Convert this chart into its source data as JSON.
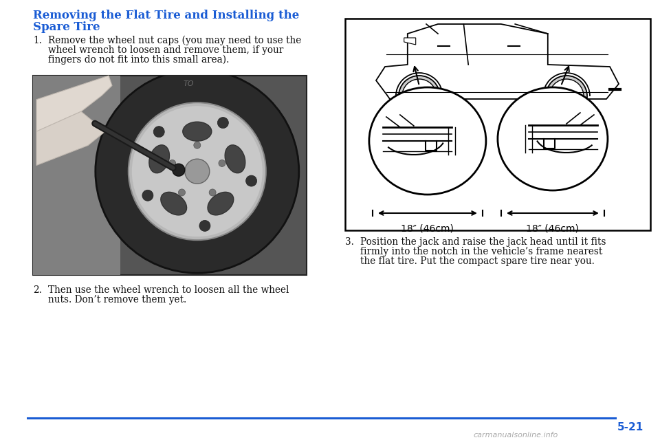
{
  "bg_color": "#ffffff",
  "title_color": "#1a5cd4",
  "title_line1": "Removing the Flat Tire and Installing the",
  "title_line2": "Spare Tire",
  "text_color": "#111111",
  "step1_number": "1.",
  "step1_line1": "Remove the wheel nut caps (you may need to use the",
  "step1_line2": "wheel wrench to loosen and remove them, if your",
  "step1_line3": "fingers do not fit into this small area).",
  "step2_number": "2.",
  "step2_line1": "Then use the wheel wrench to loosen all the wheel",
  "step2_line2": "nuts. Don’t remove them yet.",
  "step3_number": "3.",
  "step3_line1": "Position the jack and raise the jack head until it fits",
  "step3_line2": "firmly into the notch in the vehicle’s frame nearest",
  "step3_line3": "the flat tire. Put the compact spare tire near you.",
  "page_number": "5-21",
  "watermark": "carmanualsonline.info",
  "footer_line_color": "#1a5cd4",
  "diagram_box_color": "#000000",
  "measurement_text1": "18″ (46cm)",
  "measurement_text2": "18″ (46cm)",
  "title_fontsize": 12,
  "body_fontsize": 9.8,
  "page_num_fontsize": 11,
  "watermark_fontsize": 8,
  "photo_bg": "#606060",
  "photo_tire_color": "#4a4a4a",
  "photo_rim_color": "#aaaaaa",
  "photo_hand_color": "#e0d8d0"
}
